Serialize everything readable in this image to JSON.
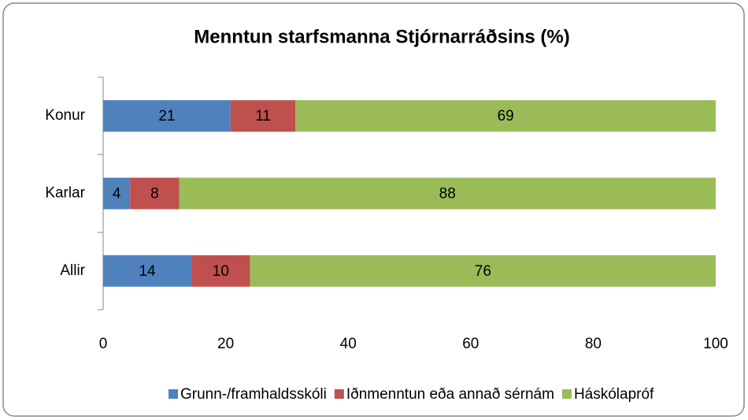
{
  "chart_data": {
    "type": "stacked_barh",
    "title": "Menntun starfsmanna Stjórnarráðsins (%)",
    "categories": [
      "Konur",
      "Karlar",
      "Allir"
    ],
    "series": [
      {
        "name": "Grunn-/framhaldsskóli",
        "color": "#4f81bd",
        "values": [
          20.8,
          4.4,
          14.4
        ],
        "value_labels": [
          "21",
          "4",
          "14"
        ]
      },
      {
        "name": "Iðnmenntun eða annað sérnám",
        "color": "#c0504d",
        "values": [
          10.6,
          8.0,
          9.6
        ],
        "value_labels": [
          "11",
          "8",
          "10"
        ]
      },
      {
        "name": "Háskólapróf",
        "color": "#9bbb59",
        "values": [
          68.6,
          87.6,
          76.0
        ],
        "value_labels": [
          "69",
          "88",
          "76"
        ]
      }
    ],
    "xlim": [
      0,
      100
    ],
    "xticks": [
      0,
      20,
      40,
      60,
      80,
      100
    ],
    "grid": false,
    "legend": "bottom"
  }
}
